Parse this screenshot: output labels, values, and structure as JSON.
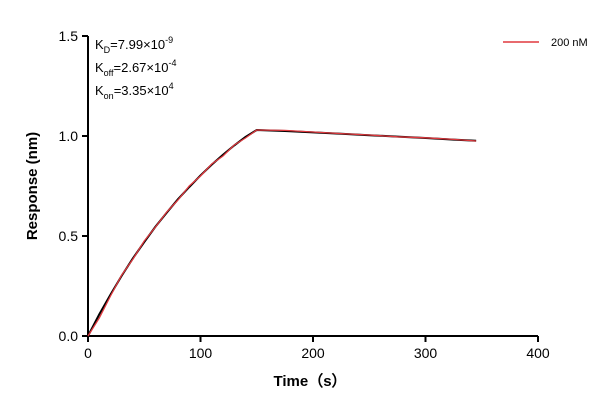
{
  "chart_data": {
    "type": "line",
    "x_label": "Time（s）",
    "y_label": "Response (nm)",
    "annotations": [
      {
        "symbol": "K",
        "subscript": "D",
        "text": "=7.99×10",
        "exponent": "-9"
      },
      {
        "symbol": "K",
        "subscript": "off",
        "text": "=2.67×10",
        "exponent": "-4"
      },
      {
        "symbol": "K",
        "subscript": "on",
        "text": "=3.35×10",
        "exponent": "4"
      }
    ],
    "x": [
      0,
      10,
      20,
      30,
      40,
      50,
      60,
      70,
      80,
      90,
      100,
      110,
      120,
      130,
      140,
      150,
      175,
      200,
      225,
      250,
      275,
      300,
      325,
      345
    ],
    "series": [
      {
        "color": "#000000",
        "values": [
          0,
          0.108,
          0.207,
          0.302,
          0.389,
          0.47,
          0.547,
          0.617,
          0.684,
          0.745,
          0.803,
          0.857,
          0.906,
          0.953,
          0.995,
          1.03,
          1.025,
          1.018,
          1.011,
          1.004,
          0.997,
          0.99,
          0.982,
          0.976
        ]
      },
      {
        "name": "200 nM",
        "color": "#e0393e",
        "values": [
          0,
          0.09,
          0.2,
          0.305,
          0.385,
          0.475,
          0.545,
          0.62,
          0.68,
          0.75,
          0.8,
          0.86,
          0.9,
          0.955,
          0.99,
          1.03,
          1.028,
          1.02,
          1.012,
          1.005,
          0.996,
          0.991,
          0.983,
          0.975
        ]
      }
    ],
    "xlim": [
      0,
      400
    ],
    "xticks": [
      0,
      100,
      200,
      300,
      400
    ],
    "ylim": [
      0,
      1.5
    ],
    "yticks": [
      {
        "value": 0,
        "label": "0.0"
      },
      {
        "value": 0.5,
        "label": "0.5"
      },
      {
        "value": 1,
        "label": "1.0"
      },
      1.5
    ],
    "legend": "top-right"
  }
}
